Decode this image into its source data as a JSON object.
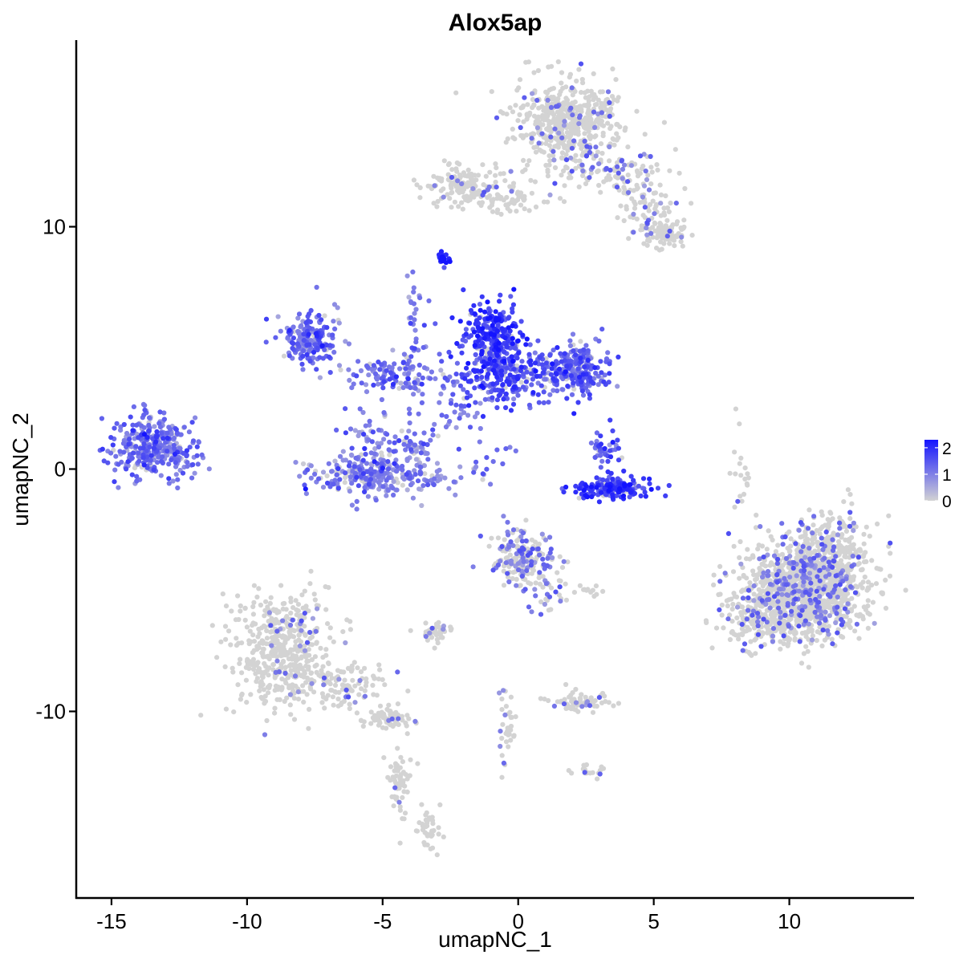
{
  "chart_data": {
    "type": "scatter",
    "title": "Alox5ap",
    "xlabel": "umapNC_1",
    "ylabel": "umapNC_2",
    "xlim": [
      -16.3,
      14.6
    ],
    "ylim": [
      -17.7,
      17.7
    ],
    "x_ticks": [
      -15,
      -10,
      -5,
      0,
      5,
      10
    ],
    "x_tick_labels": [
      "-15",
      "-10",
      "-5",
      "0",
      "5",
      "10"
    ],
    "y_ticks": [
      -10,
      0,
      10
    ],
    "y_tick_labels": [
      "-10",
      "0",
      "10"
    ],
    "color_scale": {
      "low": "#d3d3d3",
      "high": "#1414ff",
      "min": 0,
      "max": 2.3,
      "ticks": [
        0,
        1,
        2
      ],
      "tick_labels": [
        "0",
        "1",
        "2"
      ],
      "placement": "right"
    },
    "point_color_zero": "#d3d3d3",
    "clusters": [
      {
        "cx": 1.9,
        "cy": 14.4,
        "sx": 1.0,
        "sy": 0.8,
        "n": 520,
        "expr": 0.02
      },
      {
        "cx": 3.3,
        "cy": 12.2,
        "sx": 1.0,
        "sy": 0.5,
        "n": 110,
        "expr": 0.05
      },
      {
        "cx": 4.9,
        "cy": 10.8,
        "sx": 0.6,
        "sy": 0.6,
        "n": 70,
        "expr": 0.05
      },
      {
        "cx": 5.5,
        "cy": 9.7,
        "sx": 0.4,
        "sy": 0.3,
        "n": 90,
        "expr": 0.03
      },
      {
        "cx": -1.7,
        "cy": 11.7,
        "sx": 0.9,
        "sy": 0.45,
        "n": 160,
        "expr": 0.02
      },
      {
        "cx": -0.2,
        "cy": 11.1,
        "sx": 0.7,
        "sy": 0.25,
        "n": 40,
        "expr": 0.02
      },
      {
        "cx": -2.8,
        "cy": 8.7,
        "sx": 0.12,
        "sy": 0.12,
        "n": 20,
        "expr": 2.2
      },
      {
        "cx": -7.7,
        "cy": 5.4,
        "sx": 0.55,
        "sy": 0.55,
        "n": 190,
        "expr": 1.2
      },
      {
        "cx": -4.7,
        "cy": 3.9,
        "sx": 0.8,
        "sy": 0.35,
        "n": 110,
        "expr": 1.1
      },
      {
        "cx": -3.8,
        "cy": 5.6,
        "sx": 0.3,
        "sy": 1.4,
        "n": 40,
        "expr": 1.1
      },
      {
        "cx": -5.4,
        "cy": 1.1,
        "sx": 0.5,
        "sy": 0.7,
        "n": 60,
        "expr": 1.1
      },
      {
        "cx": -5.2,
        "cy": -0.3,
        "sx": 1.4,
        "sy": 0.45,
        "n": 260,
        "expr": 1.0
      },
      {
        "cx": -3.9,
        "cy": 0.9,
        "sx": 0.4,
        "sy": 0.6,
        "n": 50,
        "expr": 1.0
      },
      {
        "cx": -1.0,
        "cy": 5.5,
        "sx": 0.5,
        "sy": 0.8,
        "n": 260,
        "expr": 1.8
      },
      {
        "cx": -1.0,
        "cy": 3.8,
        "sx": 0.8,
        "sy": 0.55,
        "n": 180,
        "expr": 1.5
      },
      {
        "cx": 2.2,
        "cy": 4.1,
        "sx": 0.6,
        "sy": 0.55,
        "n": 220,
        "expr": 1.3
      },
      {
        "cx": 0.7,
        "cy": 4.2,
        "sx": 0.7,
        "sy": 0.5,
        "n": 90,
        "expr": 1.4
      },
      {
        "cx": 3.5,
        "cy": -0.8,
        "sx": 0.7,
        "sy": 0.22,
        "n": 160,
        "expr": 1.8
      },
      {
        "cx": 3.2,
        "cy": 0.8,
        "sx": 0.3,
        "sy": 0.5,
        "n": 40,
        "expr": 1.5
      },
      {
        "cx": -13.6,
        "cy": 1.0,
        "sx": 0.65,
        "sy": 0.6,
        "n": 300,
        "expr": 1.2
      },
      {
        "cx": -12.5,
        "cy": 0.7,
        "sx": 0.5,
        "sy": 0.6,
        "n": 50,
        "expr": 1.0
      },
      {
        "cx": -8.7,
        "cy": -7.5,
        "sx": 0.85,
        "sy": 1.2,
        "n": 480,
        "expr": 0.02
      },
      {
        "cx": -6.5,
        "cy": -8.9,
        "sx": 0.8,
        "sy": 0.5,
        "n": 110,
        "expr": 0.02
      },
      {
        "cx": -4.7,
        "cy": -10.3,
        "sx": 0.5,
        "sy": 0.2,
        "n": 60,
        "expr": 0.02
      },
      {
        "cx": -4.4,
        "cy": -12.8,
        "sx": 0.25,
        "sy": 0.9,
        "n": 60,
        "expr": 0.01
      },
      {
        "cx": -3.3,
        "cy": -14.8,
        "sx": 0.2,
        "sy": 0.55,
        "n": 40,
        "expr": 0.01
      },
      {
        "cx": 10.6,
        "cy": -5.0,
        "sx": 1.1,
        "sy": 1.0,
        "n": 1050,
        "expr": 0.05
      },
      {
        "cx": 9.2,
        "cy": -6.0,
        "sx": 0.8,
        "sy": 0.7,
        "n": 220,
        "expr": 0.05
      },
      {
        "cx": 11.6,
        "cy": -3.3,
        "sx": 0.8,
        "sy": 0.8,
        "n": 220,
        "expr": 0.05
      },
      {
        "cx": 0.1,
        "cy": -3.6,
        "sx": 0.6,
        "sy": 0.55,
        "n": 180,
        "expr": 0.12
      },
      {
        "cx": 1.0,
        "cy": -5.0,
        "sx": 0.4,
        "sy": 0.5,
        "n": 40,
        "expr": 0.1
      },
      {
        "cx": -3.2,
        "cy": -6.8,
        "sx": 0.35,
        "sy": 0.2,
        "n": 40,
        "expr": 0.02
      },
      {
        "cx": 2.3,
        "cy": -9.6,
        "sx": 0.55,
        "sy": 0.22,
        "n": 70,
        "expr": 0.05
      },
      {
        "cx": -0.4,
        "cy": -10.8,
        "sx": 0.2,
        "sy": 0.8,
        "n": 35,
        "expr": 0.05
      },
      {
        "cx": 2.6,
        "cy": -12.5,
        "sx": 0.3,
        "sy": 0.15,
        "n": 20,
        "expr": 0.01
      },
      {
        "cx": 8.2,
        "cy": -0.6,
        "sx": 0.15,
        "sy": 0.8,
        "n": 20,
        "expr": 0.01
      },
      {
        "cx": 2.7,
        "cy": -5.0,
        "sx": 0.3,
        "sy": 0.1,
        "n": 12,
        "expr": 0.01
      },
      {
        "cx": -2.3,
        "cy": 2.3,
        "sx": 0.4,
        "sy": 0.6,
        "n": 30,
        "expr": 0.3
      },
      {
        "cx": -1.3,
        "cy": 0.3,
        "sx": 0.5,
        "sy": 0.5,
        "n": 20,
        "expr": 0.2
      }
    ]
  }
}
